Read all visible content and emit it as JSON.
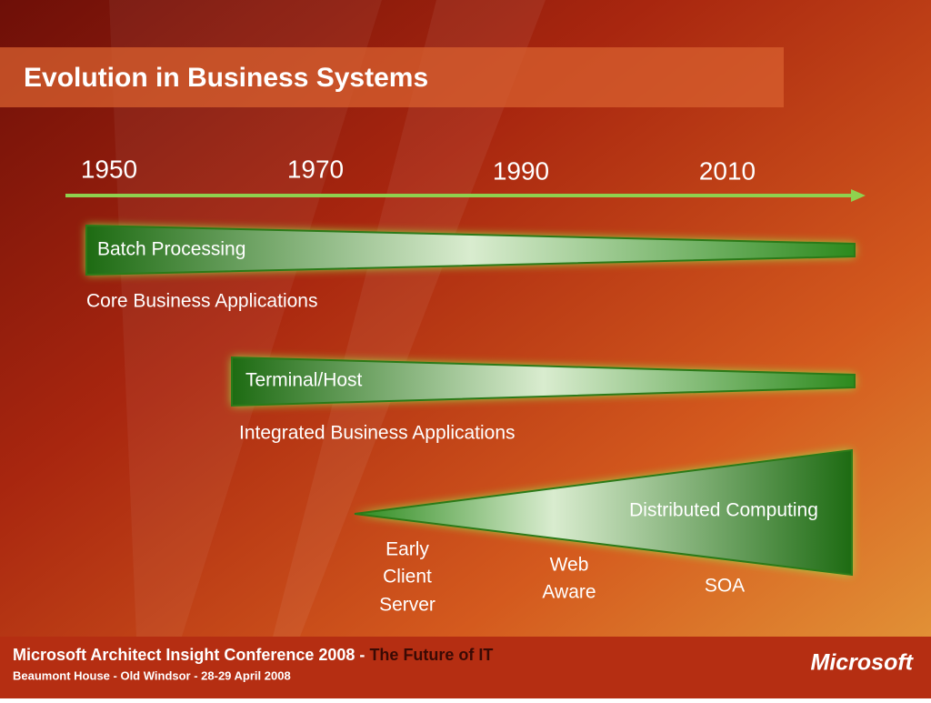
{
  "header": {
    "title": "Evolution in Business Systems"
  },
  "timeline": {
    "years": [
      "1950",
      "1970",
      "1990",
      "2010"
    ]
  },
  "bands": [
    {
      "label": "Batch Processing",
      "caption": "Core Business Applications"
    },
    {
      "label": "Terminal/Host",
      "caption": "Integrated Business Applications"
    },
    {
      "label": "Distributed Computing",
      "stages": [
        [
          "Early",
          "Client",
          "Server"
        ],
        [
          "Web",
          "Aware"
        ],
        [
          "SOA"
        ]
      ]
    }
  ],
  "footer": {
    "conference": "Microsoft Architect Insight Conference 2008 -",
    "tagline": "The Future of IT",
    "venue": "Beaumont House - Old Windsor - 28-29 April 2008",
    "logo": "Microsoft"
  }
}
